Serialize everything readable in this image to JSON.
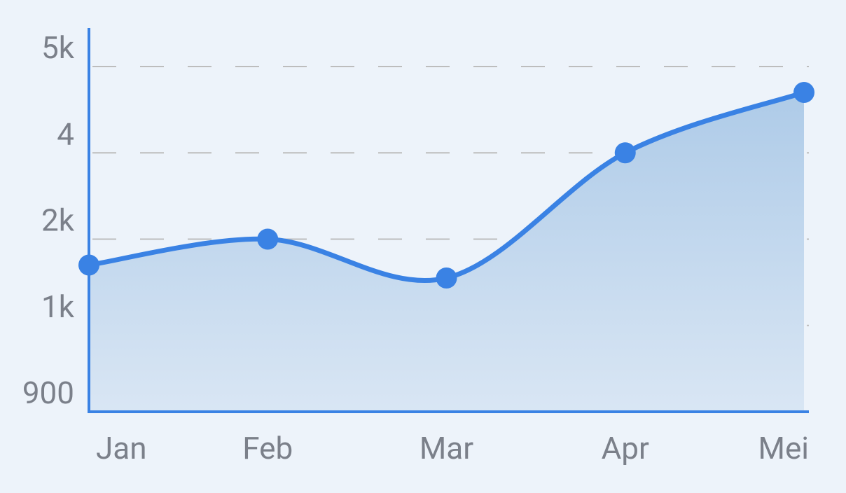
{
  "chart_data": {
    "type": "line",
    "categories": [
      "Jan",
      "Feb",
      "Mar",
      "Apr",
      "Mei"
    ],
    "series": [
      {
        "name": null,
        "color": "#3a82e4",
        "values": [
          1700,
          2000,
          1550,
          4000,
          4700
        ]
      }
    ],
    "ylim": [
      900,
      5000
    ],
    "yticks": [
      900,
      {
        "value": 1000,
        "label": "1k"
      },
      {
        "value": 2000,
        "label": "2k"
      },
      {
        "value": 4000,
        "label": "4"
      },
      {
        "value": 5000,
        "label": "5k"
      }
    ],
    "grid": true
  }
}
